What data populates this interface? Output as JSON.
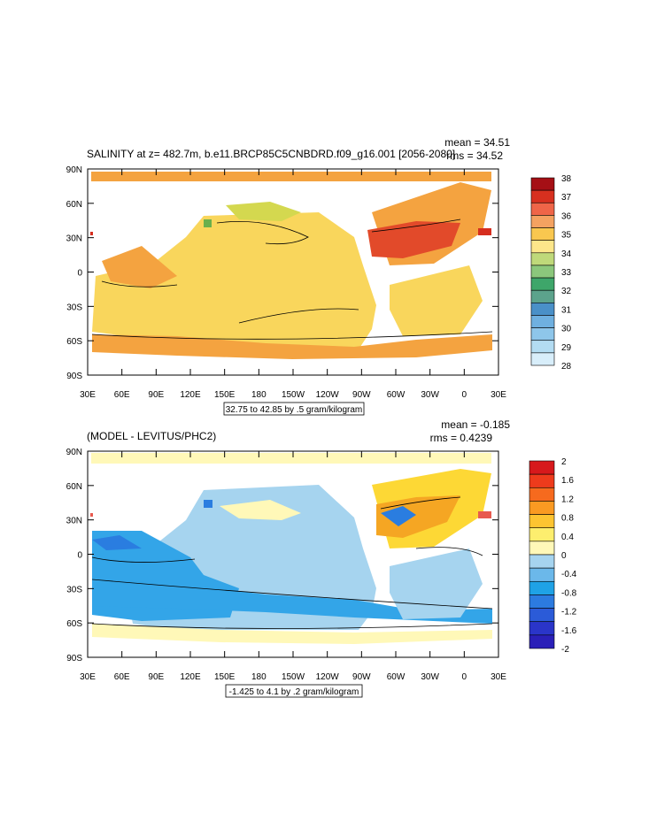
{
  "panels": [
    {
      "id": "top",
      "title": "SALINITY at z= 482.7m, b.e11.BRCP85C5CNBDRD.f09_g16.001 [2056-2080]",
      "mean": "mean = 34.51",
      "rms": "rms = 34.52",
      "contour_info": "32.75 to 42.85 by .5 gram/kilogram",
      "lat_ticks": [
        "90N",
        "60N",
        "30N",
        "0",
        "30S",
        "60S",
        "90S"
      ],
      "lon_ticks": [
        "30E",
        "60E",
        "90E",
        "120E",
        "150E",
        "180",
        "150W",
        "120W",
        "90W",
        "60W",
        "30W",
        "0",
        "30E"
      ],
      "colorbar": {
        "labels": [
          "38",
          "37",
          "36",
          "35",
          "34",
          "33",
          "32",
          "31",
          "30",
          "29",
          "28"
        ],
        "colors": [
          "#a50f15",
          "#d7301f",
          "#ef6548",
          "#f4a261",
          "#f9c74f",
          "#fde68a",
          "#bfd97a",
          "#8bc77c",
          "#3ea66a",
          "#5ca38c",
          "#4a90c8",
          "#6fb0e0",
          "#8ec6ea",
          "#b3dcf2",
          "#d8eefa"
        ]
      },
      "map_colors": {
        "main": "#f9d65c",
        "mid": "#f4a340",
        "high": "#e24a2a",
        "bright": "#d62e1f",
        "green": "#6ab04c",
        "lime": "#c9d84f"
      }
    },
    {
      "id": "bottom",
      "title": "(MODEL - LEVITUS/PHC2)",
      "mean": "mean = -0.185",
      "rms": "rms = 0.4239",
      "contour_info": "-1.425 to 4.1 by .2 gram/kilogram",
      "lat_ticks": [
        "90N",
        "60N",
        "30N",
        "0",
        "30S",
        "60S",
        "90S"
      ],
      "lon_ticks": [
        "30E",
        "60E",
        "90E",
        "120E",
        "150E",
        "180",
        "150W",
        "120W",
        "90W",
        "60W",
        "30W",
        "0",
        "30E"
      ],
      "colorbar": {
        "labels": [
          "2",
          "1.6",
          "1.2",
          "0.8",
          "0.4",
          "0",
          "-0.4",
          "-0.8",
          "-1.2",
          "-1.6",
          "-2"
        ],
        "colors": [
          "#d7191c",
          "#ee3b1c",
          "#f66a1e",
          "#fa9a22",
          "#fdc431",
          "#fdee6e",
          "#fff8b8",
          "#a6d4ef",
          "#6bb8ea",
          "#1fa2e6",
          "#2c7be0",
          "#2b5bd8",
          "#2a35c9",
          "#2a1fb8"
        ]
      },
      "map_colors": {
        "main": "#a6d4ef",
        "deep": "#33a5e8",
        "deeper": "#2a7de0",
        "pale": "#fff8b8",
        "yellow": "#fdd835",
        "orange": "#f5a623",
        "red": "#e85a4f"
      }
    }
  ]
}
